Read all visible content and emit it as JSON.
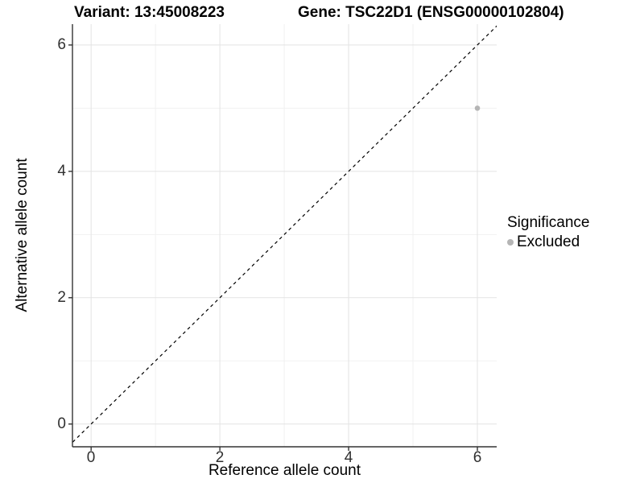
{
  "chart_data": {
    "type": "scatter",
    "titles": {
      "left": "Variant: 13:45008223",
      "right": "Gene: TSC22D1 (ENSG00000102804)"
    },
    "xlabel": "Reference allele count",
    "ylabel": "Alternative allele count",
    "x_ticks": [
      0,
      2,
      4,
      6
    ],
    "y_ticks": [
      0,
      2,
      4,
      6
    ],
    "minor_gridlines_x": [
      1,
      3,
      5
    ],
    "minor_gridlines_y": [
      1,
      3,
      5
    ],
    "xlim": [
      -0.29,
      6.3
    ],
    "ylim": [
      -0.36,
      6.33
    ],
    "grid": true,
    "identity_line": {
      "slope": 1,
      "intercept": 0,
      "style": "dashed",
      "color": "#000000"
    },
    "series": [
      {
        "name": "Excluded",
        "color": "#b5b5b5",
        "points": [
          {
            "x": 6,
            "y": 5
          }
        ]
      }
    ],
    "legend": {
      "title": "Significance",
      "position": "right",
      "items": [
        {
          "label": "Excluded",
          "color": "#b5b5b5"
        }
      ]
    },
    "colors": {
      "grid_major": "#e3e3e3",
      "grid_minor": "#f1f1f1",
      "axis_line": "#333333",
      "tick_text": "#303030",
      "point": "#b5b5b5"
    }
  }
}
